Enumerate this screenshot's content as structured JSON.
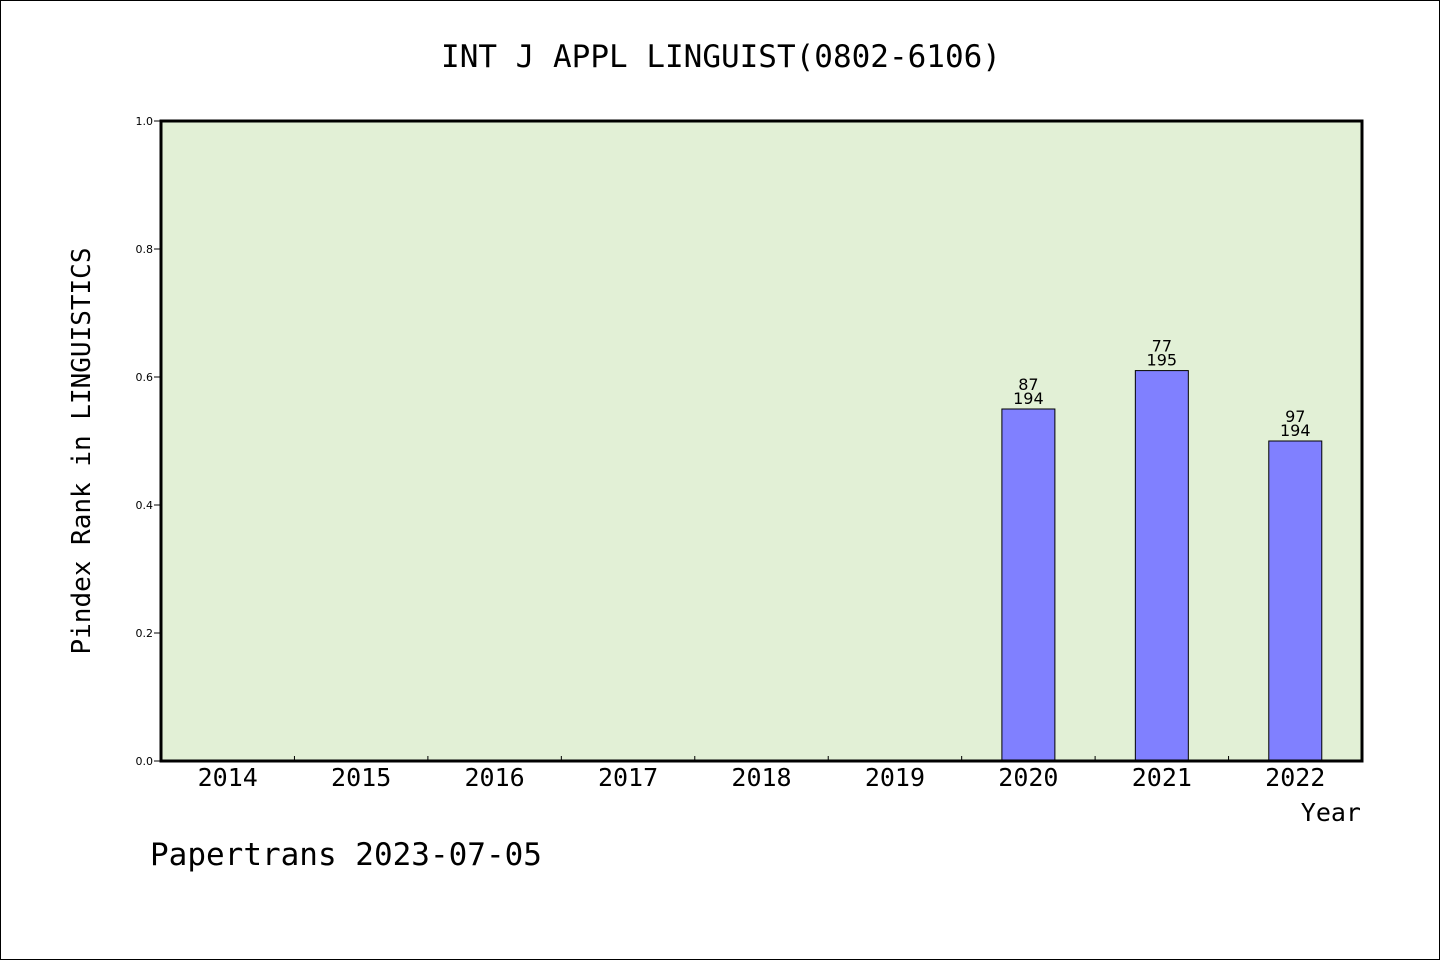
{
  "chart_data": {
    "type": "bar",
    "title": "INT J APPL LINGUIST(0802-6106)",
    "xlabel": "Year",
    "ylabel": "Pindex Rank in LINGUISTICS",
    "categories": [
      "2014",
      "2015",
      "2016",
      "2017",
      "2018",
      "2019",
      "2020",
      "2021",
      "2022"
    ],
    "values": [
      null,
      null,
      null,
      null,
      null,
      null,
      0.55,
      0.61,
      0.5
    ],
    "bar_labels": [
      null,
      null,
      null,
      null,
      null,
      null,
      {
        "top": "87",
        "bottom": "194"
      },
      {
        "top": "77",
        "bottom": "195"
      },
      {
        "top": "97",
        "bottom": "194"
      }
    ],
    "ylim": [
      0,
      1.0
    ],
    "yticks": [
      "0.0",
      "0.2",
      "0.4",
      "0.6",
      "0.8",
      "1.0"
    ],
    "grid": false,
    "legend": "none",
    "plot_background": "#e2f0d6",
    "bar_color": "#8080ff"
  },
  "footer": "Papertrans 2023-07-05"
}
